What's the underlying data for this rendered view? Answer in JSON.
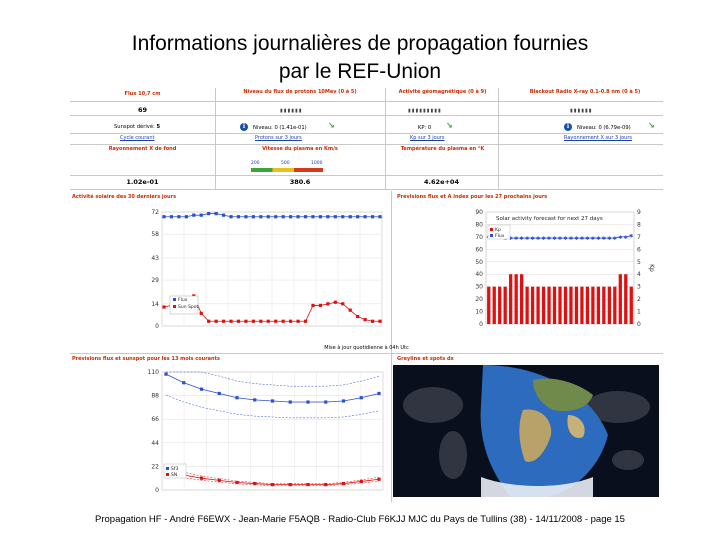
{
  "title": {
    "line1": "Informations journalières de propagation fournies",
    "line2": "par le REF-Union"
  },
  "footer": "Propagation HF - André F6EWX - Jean-Marie F5AQB - Radio-Club F6KJJ MJC du Pays de Tullins (38) - 14/11/2008 - page 15",
  "top_table": {
    "flux_header": "Flux 10,7 cm",
    "flux_value": "69",
    "sunspot_label": "Sunspot dérivé:",
    "sunspot_value": "5",
    "cycle_link": "Cycle courant",
    "xray_bg_header": "Rayonnement X de fond",
    "xray_bg_value": "1.02e-01",
    "proton_header": "Niveau du flux de protons 10Mev (0 à 5)",
    "proton_level": "Niveau: 0 (1.41e-01)",
    "proton_link": "Protons sur 3 jours",
    "wind_header": "Vitesse du plasma en Km/s",
    "wind_scale": [
      "200",
      "500",
      "1000"
    ],
    "wind_value": "380.6",
    "geomag_header": "Activité géomagnétique (0 à 9)",
    "kp_label": "KP: 0",
    "kp_link": "Kp sur 3 jours",
    "temp_header": "Température du plasma en °K",
    "temp_value": "4.62e+04",
    "blackout_header": "Blackout Radio X-ray 0.1-0.8 nm (0 à 5)",
    "blackout_level": "Niveau: 0 (6.79e-09)",
    "blackout_link": "Rayonnement X sur 3 jours",
    "colors": {
      "header_red": "#cc2a00",
      "link_blue": "#1a3fb0"
    }
  },
  "sections": {
    "solar30_header": "Activité solaire des 30 derniers jours",
    "forecast27_header": "Prévisions flux et A index pour les 27 prochains jours",
    "update_note": "Mise à jour quotidienne à 04h Utc",
    "forecast13_header": "Prévisions flux et sunspot pour les 13 mois courants",
    "greyline_header": "Greyline et spots dx"
  },
  "chart_data": [
    {
      "type": "line",
      "ylim": [
        0,
        72
      ],
      "yticks": [
        "0",
        "14",
        "29",
        "43",
        "58",
        "72"
      ],
      "series": [
        {
          "name": "Flux",
          "color": "#2a4fd0",
          "values": [
            69,
            69,
            69,
            69,
            70,
            70,
            71,
            71,
            70,
            69,
            69,
            69,
            69,
            69,
            69,
            69,
            69,
            69,
            69,
            69,
            69,
            69,
            69,
            69,
            69,
            69,
            69,
            69,
            69,
            69
          ]
        },
        {
          "name": "Sun Spot",
          "color": "#e01010",
          "values": [
            12,
            13,
            12,
            13,
            19,
            8,
            3,
            3,
            3,
            3,
            3,
            3,
            3,
            3,
            3,
            3,
            3,
            3,
            3,
            3,
            13,
            13,
            14,
            15,
            14,
            10,
            6,
            4,
            3,
            3
          ]
        }
      ]
    },
    {
      "type": "bar",
      "title": "Solar activity forecast for next 27 days",
      "ylim_left": [
        0,
        90
      ],
      "yticks_left": [
        "0",
        "10",
        "20",
        "30",
        "40",
        "50",
        "60",
        "70",
        "80",
        "90"
      ],
      "ylim_right": [
        0,
        9
      ],
      "yticks_right": [
        "0",
        "1",
        "2",
        "3",
        "4",
        "5",
        "6",
        "7",
        "8",
        "9"
      ],
      "right_axis_label": "Kp",
      "series": [
        {
          "name": "Kp",
          "color": "#e01010",
          "values": [
            3,
            3,
            3,
            3,
            4,
            4,
            4,
            3,
            3,
            3,
            3,
            3,
            3,
            3,
            3,
            3,
            3,
            3,
            3,
            3,
            3,
            3,
            3,
            3,
            4,
            4,
            3
          ]
        },
        {
          "name": "Flux",
          "color": "#2a4fd0",
          "values": [
            70,
            70,
            70,
            69,
            69,
            69,
            69,
            69,
            69,
            69,
            69,
            69,
            69,
            69,
            69,
            69,
            69,
            69,
            69,
            69,
            69,
            69,
            69,
            69,
            70,
            70,
            71
          ]
        }
      ]
    },
    {
      "type": "line",
      "ylim": [
        0,
        110
      ],
      "yticks": [
        "0",
        "22",
        "44",
        "66",
        "88",
        "110"
      ],
      "series": [
        {
          "name": "Sf3",
          "color": "#2a4fd0",
          "values": [
            108,
            100,
            94,
            90,
            86,
            84,
            83,
            82,
            82,
            82,
            83,
            86,
            90
          ]
        },
        {
          "name": "SN",
          "color": "#e01010",
          "values": [
            18,
            14,
            11,
            9,
            7,
            6,
            5,
            5,
            5,
            5,
            6,
            8,
            10
          ]
        }
      ]
    }
  ]
}
